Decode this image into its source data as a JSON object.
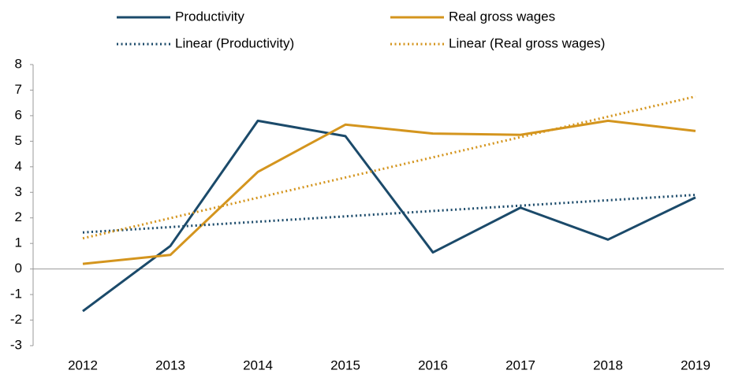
{
  "chart_data": {
    "type": "line",
    "categories": [
      "2012",
      "2013",
      "2014",
      "2015",
      "2016",
      "2017",
      "2018",
      "2019"
    ],
    "series": [
      {
        "name": "Productivity",
        "color": "#1b4a6a",
        "style": "solid",
        "values": [
          -1.65,
          0.9,
          5.8,
          5.2,
          0.65,
          2.4,
          1.15,
          2.8
        ]
      },
      {
        "name": "Real gross wages",
        "color": "#d4951e",
        "style": "solid",
        "values": [
          0.2,
          0.55,
          3.8,
          5.65,
          5.3,
          5.25,
          5.8,
          5.4
        ]
      },
      {
        "name": "Linear (Productivity)",
        "color": "#1b4a6a",
        "style": "dotted",
        "values": [
          1.43,
          1.64,
          1.85,
          2.06,
          2.27,
          2.48,
          2.69,
          2.9
        ]
      },
      {
        "name": "Linear (Real gross wages)",
        "color": "#d4951e",
        "style": "dotted",
        "values": [
          1.2,
          1.99,
          2.79,
          3.58,
          4.37,
          5.16,
          5.96,
          6.75
        ]
      }
    ],
    "ylim": [
      -3,
      8
    ],
    "yticks": [
      -3,
      -2,
      -1,
      0,
      1,
      2,
      3,
      4,
      5,
      6,
      7,
      8
    ]
  }
}
